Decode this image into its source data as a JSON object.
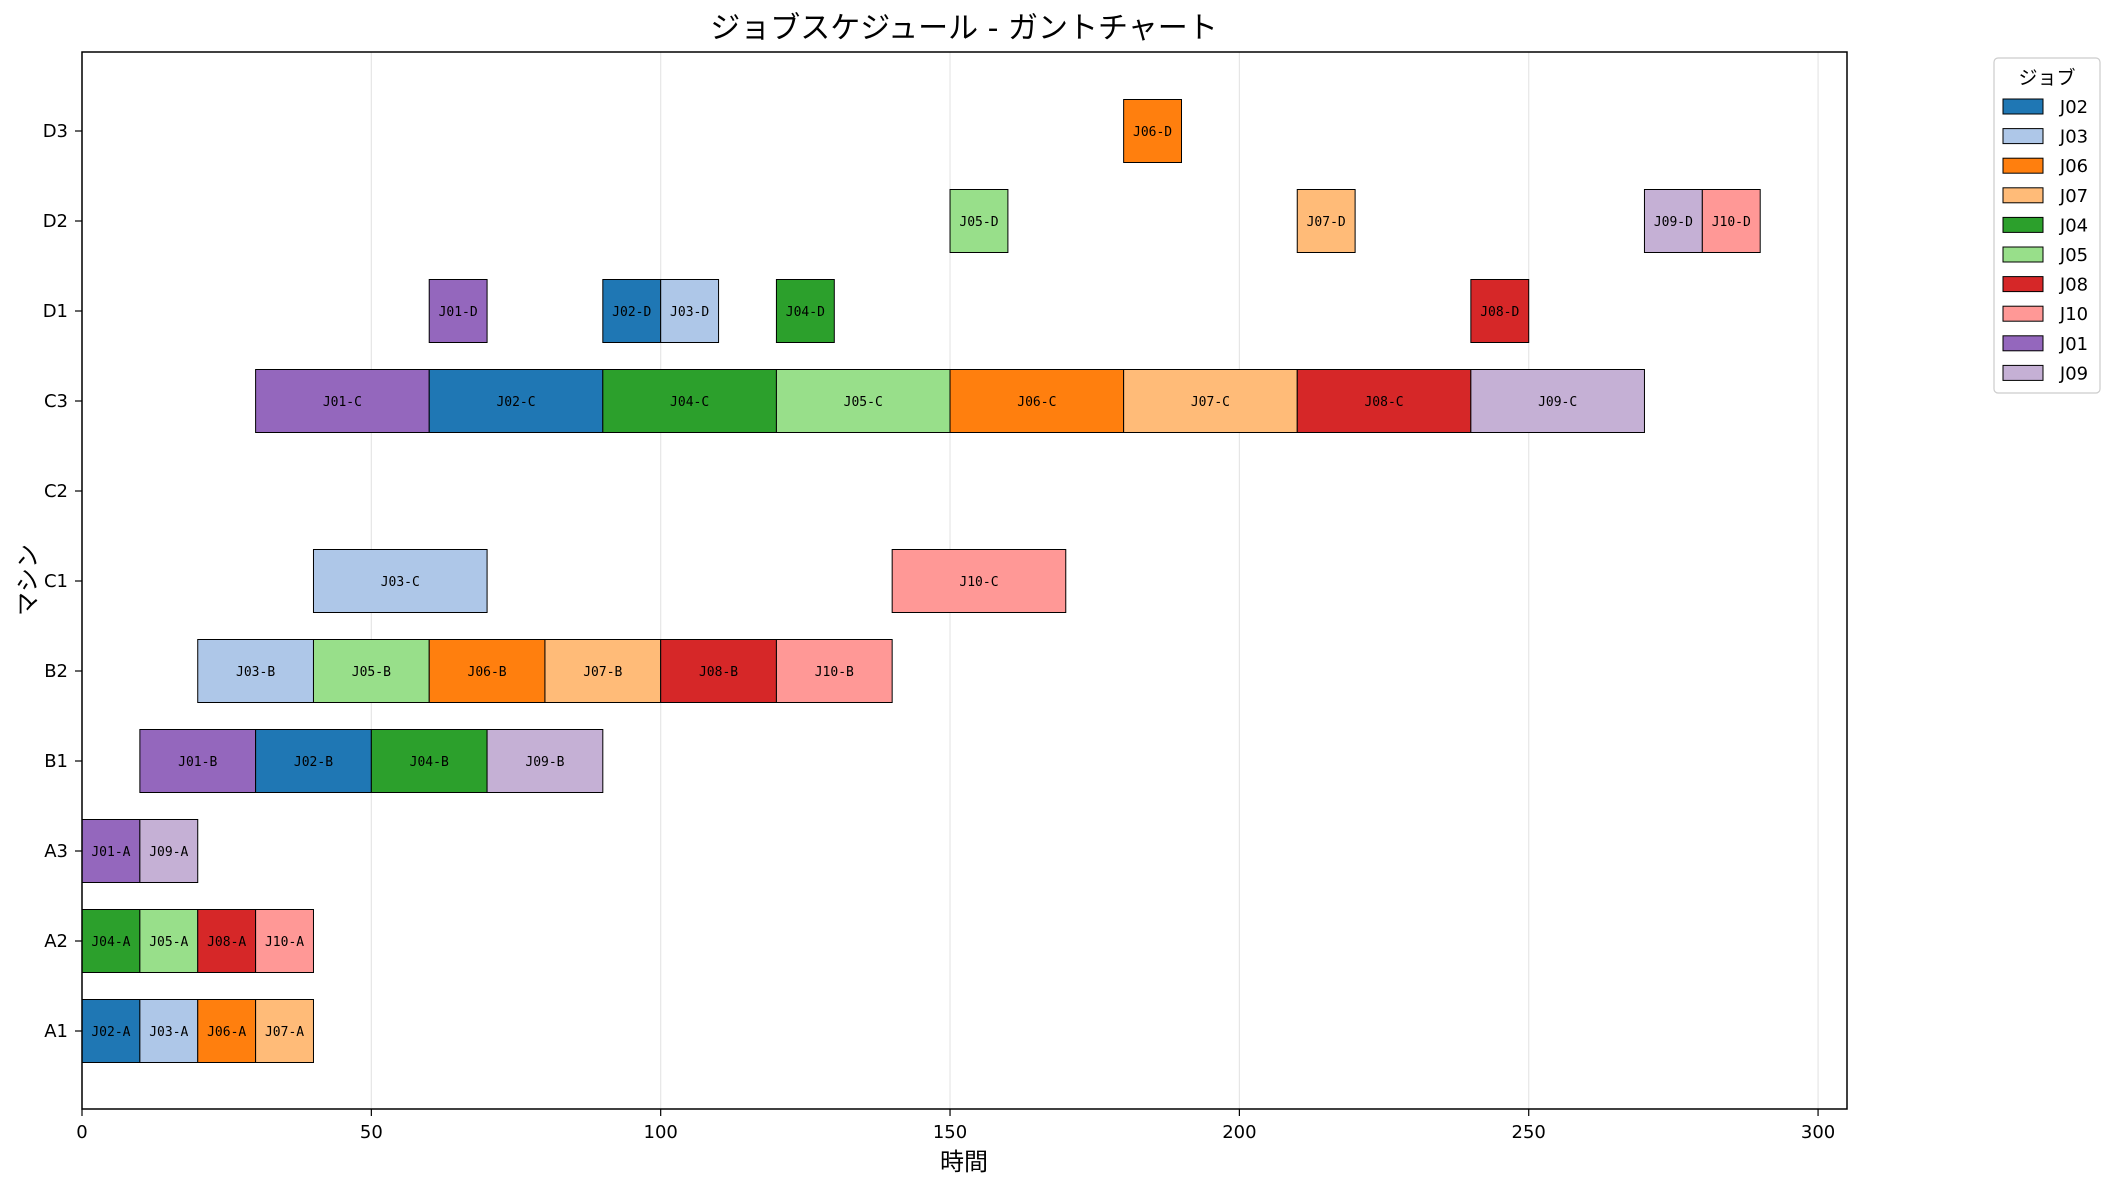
{
  "chart_data": {
    "type": "gantt",
    "title": "ジョブスケジュール - ガントチャート",
    "xlabel": "時間",
    "ylabel": "マシン",
    "xlim": [
      0,
      305
    ],
    "xticks": [
      0,
      50,
      100,
      150,
      200,
      250,
      300
    ],
    "machines": [
      "A1",
      "A2",
      "A3",
      "B1",
      "B2",
      "C1",
      "C2",
      "C3",
      "D1",
      "D2",
      "D3"
    ],
    "grid": "vertical",
    "legend": {
      "title": "ジョブ",
      "placement": "outside-top-right",
      "entries": [
        "J02",
        "J03",
        "J06",
        "J07",
        "J04",
        "J05",
        "J08",
        "J10",
        "J01",
        "J09"
      ]
    },
    "job_colors": {
      "J01": "#9467bd",
      "J02": "#1f77b4",
      "J03": "#aec7e8",
      "J04": "#2ca02c",
      "J05": "#98df8a",
      "J06": "#ff7f0e",
      "J07": "#ffbb78",
      "J08": "#d62728",
      "J09": "#c5b0d5",
      "J10": "#ff9896"
    },
    "tasks": [
      {
        "machine": "A1",
        "job": "J02",
        "start": 0,
        "end": 10,
        "label": "J02-A"
      },
      {
        "machine": "A1",
        "job": "J03",
        "start": 10,
        "end": 20,
        "label": "J03-A"
      },
      {
        "machine": "A1",
        "job": "J06",
        "start": 20,
        "end": 30,
        "label": "J06-A"
      },
      {
        "machine": "A1",
        "job": "J07",
        "start": 30,
        "end": 40,
        "label": "J07-A"
      },
      {
        "machine": "A2",
        "job": "J04",
        "start": 0,
        "end": 10,
        "label": "J04-A"
      },
      {
        "machine": "A2",
        "job": "J05",
        "start": 10,
        "end": 20,
        "label": "J05-A"
      },
      {
        "machine": "A2",
        "job": "J08",
        "start": 20,
        "end": 30,
        "label": "J08-A"
      },
      {
        "machine": "A2",
        "job": "J10",
        "start": 30,
        "end": 40,
        "label": "J10-A"
      },
      {
        "machine": "A3",
        "job": "J01",
        "start": 0,
        "end": 10,
        "label": "J01-A"
      },
      {
        "machine": "A3",
        "job": "J09",
        "start": 10,
        "end": 20,
        "label": "J09-A"
      },
      {
        "machine": "B1",
        "job": "J01",
        "start": 10,
        "end": 30,
        "label": "J01-B"
      },
      {
        "machine": "B1",
        "job": "J02",
        "start": 30,
        "end": 50,
        "label": "J02-B"
      },
      {
        "machine": "B1",
        "job": "J04",
        "start": 50,
        "end": 70,
        "label": "J04-B"
      },
      {
        "machine": "B1",
        "job": "J09",
        "start": 70,
        "end": 90,
        "label": "J09-B"
      },
      {
        "machine": "B2",
        "job": "J03",
        "start": 20,
        "end": 40,
        "label": "J03-B"
      },
      {
        "machine": "B2",
        "job": "J05",
        "start": 40,
        "end": 60,
        "label": "J05-B"
      },
      {
        "machine": "B2",
        "job": "J06",
        "start": 60,
        "end": 80,
        "label": "J06-B"
      },
      {
        "machine": "B2",
        "job": "J07",
        "start": 80,
        "end": 100,
        "label": "J07-B"
      },
      {
        "machine": "B2",
        "job": "J08",
        "start": 100,
        "end": 120,
        "label": "J08-B"
      },
      {
        "machine": "B2",
        "job": "J10",
        "start": 120,
        "end": 140,
        "label": "J10-B"
      },
      {
        "machine": "C1",
        "job": "J03",
        "start": 40,
        "end": 70,
        "label": "J03-C"
      },
      {
        "machine": "C1",
        "job": "J10",
        "start": 140,
        "end": 170,
        "label": "J10-C"
      },
      {
        "machine": "C3",
        "job": "J01",
        "start": 30,
        "end": 60,
        "label": "J01-C"
      },
      {
        "machine": "C3",
        "job": "J02",
        "start": 60,
        "end": 90,
        "label": "J02-C"
      },
      {
        "machine": "C3",
        "job": "J04",
        "start": 90,
        "end": 120,
        "label": "J04-C"
      },
      {
        "machine": "C3",
        "job": "J05",
        "start": 120,
        "end": 150,
        "label": "J05-C"
      },
      {
        "machine": "C3",
        "job": "J06",
        "start": 150,
        "end": 180,
        "label": "J06-C"
      },
      {
        "machine": "C3",
        "job": "J07",
        "start": 180,
        "end": 210,
        "label": "J07-C"
      },
      {
        "machine": "C3",
        "job": "J08",
        "start": 210,
        "end": 240,
        "label": "J08-C"
      },
      {
        "machine": "C3",
        "job": "J09",
        "start": 240,
        "end": 270,
        "label": "J09-C"
      },
      {
        "machine": "D1",
        "job": "J01",
        "start": 60,
        "end": 70,
        "label": "J01-D"
      },
      {
        "machine": "D1",
        "job": "J02",
        "start": 90,
        "end": 100,
        "label": "J02-D"
      },
      {
        "machine": "D1",
        "job": "J03",
        "start": 100,
        "end": 110,
        "label": "J03-D"
      },
      {
        "machine": "D1",
        "job": "J04",
        "start": 120,
        "end": 130,
        "label": "J04-D"
      },
      {
        "machine": "D1",
        "job": "J08",
        "start": 240,
        "end": 250,
        "label": "J08-D"
      },
      {
        "machine": "D2",
        "job": "J05",
        "start": 150,
        "end": 160,
        "label": "J05-D"
      },
      {
        "machine": "D2",
        "job": "J07",
        "start": 210,
        "end": 220,
        "label": "J07-D"
      },
      {
        "machine": "D2",
        "job": "J09",
        "start": 270,
        "end": 280,
        "label": "J09-D"
      },
      {
        "machine": "D2",
        "job": "J10",
        "start": 280,
        "end": 290,
        "label": "J10-D"
      },
      {
        "machine": "D3",
        "job": "J06",
        "start": 180,
        "end": 190,
        "label": "J06-D"
      }
    ]
  }
}
